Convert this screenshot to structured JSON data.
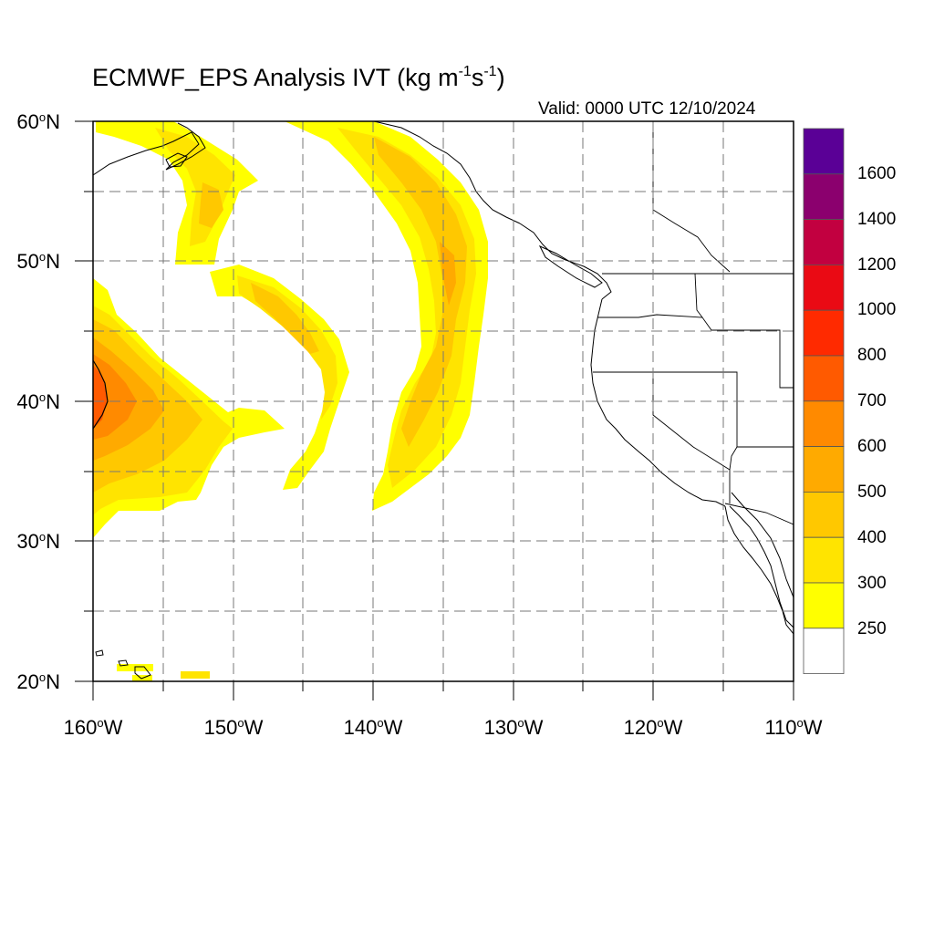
{
  "title": {
    "main": "ECMWF_EPS Analysis IVT (kg m",
    "sup1": "-1",
    "mid": "s",
    "sup2": "-1",
    "end": ")"
  },
  "valid_label": "Valid: 0000 UTC 12/10/2024",
  "latitude_labels": [
    {
      "deg": "60",
      "unit": "o",
      "dir": "N"
    },
    {
      "deg": "50",
      "unit": "o",
      "dir": "N"
    },
    {
      "deg": "40",
      "unit": "o",
      "dir": "N"
    },
    {
      "deg": "30",
      "unit": "o",
      "dir": "N"
    },
    {
      "deg": "20",
      "unit": "o",
      "dir": "N"
    }
  ],
  "longitude_labels": [
    {
      "deg": "160",
      "unit": "o",
      "dir": "W"
    },
    {
      "deg": "150",
      "unit": "o",
      "dir": "W"
    },
    {
      "deg": "140",
      "unit": "o",
      "dir": "W"
    },
    {
      "deg": "130",
      "unit": "o",
      "dir": "W"
    },
    {
      "deg": "120",
      "unit": "o",
      "dir": "W"
    },
    {
      "deg": "110",
      "unit": "o",
      "dir": "W"
    }
  ],
  "colorbar": {
    "labels": [
      "1600",
      "1400",
      "1200",
      "1000",
      "800",
      "700",
      "600",
      "500",
      "400",
      "300",
      "250"
    ],
    "colors": [
      "#5a0096",
      "#8b006e",
      "#c20040",
      "#ea0a14",
      "#ff2a00",
      "#ff5a00",
      "#ff8a00",
      "#ffaa00",
      "#ffc800",
      "#ffe400",
      "#ffff00",
      "#ffffff"
    ]
  },
  "map": {
    "lon_range": [
      -160,
      -110
    ],
    "lat_range": [
      20,
      60
    ],
    "ivt_color_scale": {
      "250": "#ffff00",
      "300": "#ffe400",
      "400": "#ffc800",
      "500": "#ffaa00",
      "600": "#ff8a00",
      "700": "#ff5a00"
    }
  }
}
